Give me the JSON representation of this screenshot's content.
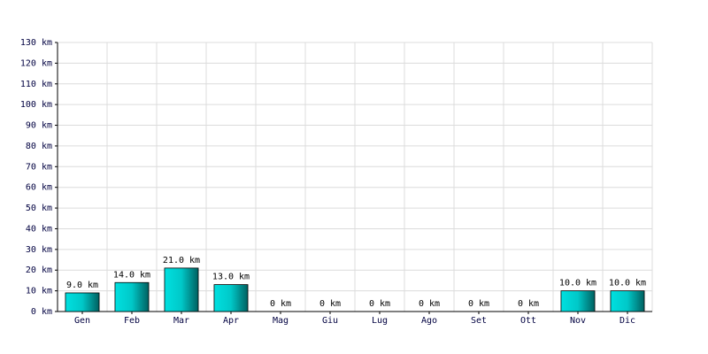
{
  "chart_data": {
    "type": "bar",
    "categories": [
      "Gen",
      "Feb",
      "Mar",
      "Apr",
      "Mag",
      "Giu",
      "Lug",
      "Ago",
      "Set",
      "Ott",
      "Nov",
      "Dic"
    ],
    "values": [
      9,
      14,
      21,
      13,
      0,
      0,
      0,
      0,
      0,
      0,
      10,
      10
    ],
    "value_labels": [
      "9.0 km",
      "14.0 km",
      "21.0 km",
      "13.0 km",
      "0 km",
      "0 km",
      "0 km",
      "0 km",
      "0 km",
      "0 km",
      "10.0 km",
      "10.0 km"
    ],
    "color": "#00c8c8",
    "ylim": [
      0,
      130
    ],
    "yticks": [
      {
        "value": 0,
        "label": "0 km"
      },
      {
        "value": 10,
        "label": "10 km"
      },
      {
        "value": 20,
        "label": "20 km"
      },
      {
        "value": 30,
        "label": "30 km"
      },
      {
        "value": 40,
        "label": "40 km"
      },
      {
        "value": 50,
        "label": "50 km"
      },
      {
        "value": 60,
        "label": "60 km"
      },
      {
        "value": 70,
        "label": "70 km"
      },
      {
        "value": 80,
        "label": "80 km"
      },
      {
        "value": 90,
        "label": "90 km"
      },
      {
        "value": 100,
        "label": "100 km"
      },
      {
        "value": 110,
        "label": "110 km"
      },
      {
        "value": 120,
        "label": "120 km"
      },
      {
        "value": 130,
        "label": "130 km"
      }
    ],
    "grid": true
  }
}
